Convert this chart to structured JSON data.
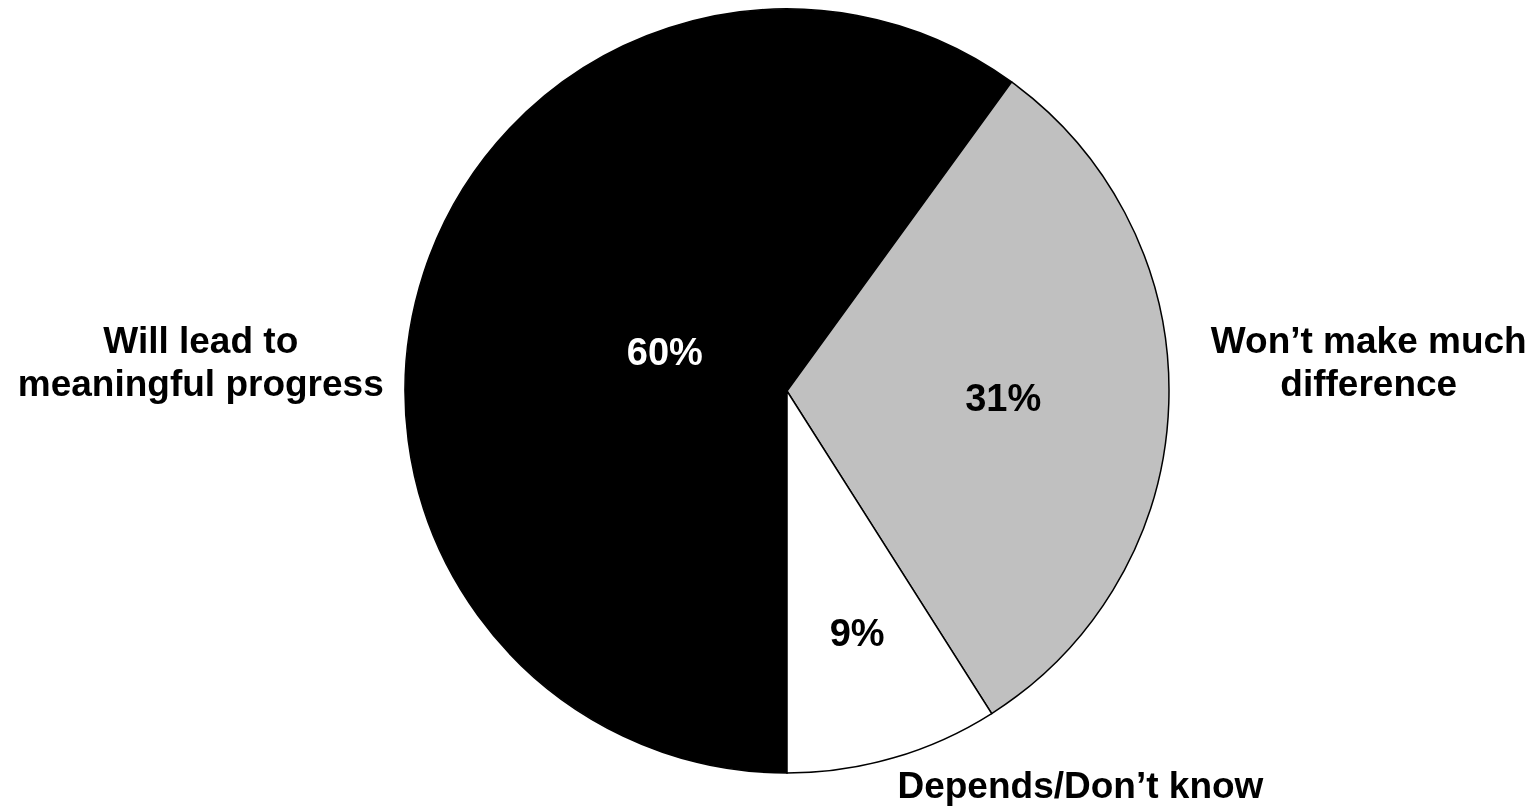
{
  "chart_data": {
    "type": "pie",
    "categories": [
      "Will lead to meaningful progress",
      "Won’t make much difference",
      "Depends/Don’t know"
    ],
    "values": [
      60,
      31,
      9
    ],
    "colors": [
      "#000000",
      "#c0c0c0",
      "#ffffff"
    ],
    "value_labels": [
      "60%",
      "31%",
      "9%"
    ]
  }
}
